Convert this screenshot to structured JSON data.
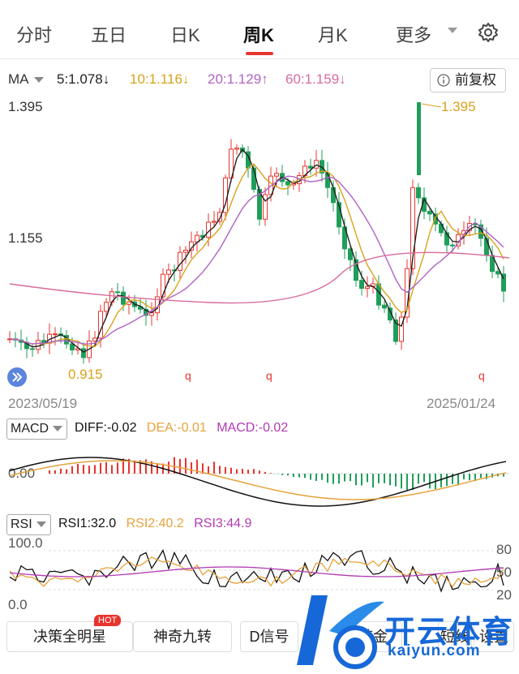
{
  "tabs": [
    "分时",
    "五日",
    "日K",
    "周K",
    "月K",
    "更多"
  ],
  "active_tab": "周K",
  "ma": {
    "label": "MA",
    "items": [
      {
        "text": "5:1.078↓",
        "color": "#222222"
      },
      {
        "text": "10:1.116↓",
        "color": "#d9a21b"
      },
      {
        "text": "20:1.129↑",
        "color": "#b062c4"
      },
      {
        "text": "60:1.159↓",
        "color": "#d86a9e"
      }
    ],
    "fq_button": "前复权"
  },
  "chart_data": [
    {
      "type": "candlestick",
      "title": "",
      "x_start": "2023/05/19",
      "x_end": "2025/01/24",
      "y_ticks": [
        "1.395",
        "1.155"
      ],
      "ylim_labels": {
        "top": "1.395",
        "mid": "1.155"
      },
      "max_label": "1.395",
      "min_label": "0.915",
      "markers": [
        "q",
        "q",
        "q"
      ],
      "colors": {
        "up": "#e8342f",
        "down": "#1f9e5a",
        "ma5": "#222222",
        "ma10": "#d9a21b",
        "ma20": "#b062c4",
        "ma60": "#d86a9e"
      }
    },
    {
      "type": "bar",
      "title": "MACD",
      "zero_label": "0.00",
      "series": [
        {
          "name": "DIFF",
          "value": "-0.02",
          "color": "#111111"
        },
        {
          "name": "DEA",
          "value": "-0.01",
          "color": "#e6a23c"
        },
        {
          "name": "MACD",
          "value": "-0.02",
          "color": "#b23ab5"
        }
      ]
    },
    {
      "type": "line",
      "title": "RSI",
      "left_ticks": [
        "100.0",
        "0.0"
      ],
      "right_ticks": [
        "80",
        "50",
        "20"
      ],
      "series": [
        {
          "name": "RSI1",
          "value": "32.0",
          "color": "#111111"
        },
        {
          "name": "RSI2",
          "value": "40.2",
          "color": "#e6a23c"
        },
        {
          "name": "RSI3",
          "value": "44.9",
          "color": "#b23ab5"
        }
      ]
    }
  ],
  "indicators": {
    "macd": {
      "label": "MACD",
      "diff": "DIFF:-0.02",
      "dea": "DEA:-0.01",
      "macd": "MACD:-0.02"
    },
    "rsi": {
      "label": "RSI",
      "rsi1": "RSI1:32.0",
      "rsi2": "RSI2:40.2",
      "rsi3": "RSI3:44.9"
    }
  },
  "bottom_buttons": [
    "决策全明星",
    "神奇九转",
    "D信号",
    "链金",
    "短线",
    "设置"
  ],
  "hot_badge": "HOT",
  "watermark": {
    "title": "开云体育",
    "url": "kaiyun.com"
  }
}
